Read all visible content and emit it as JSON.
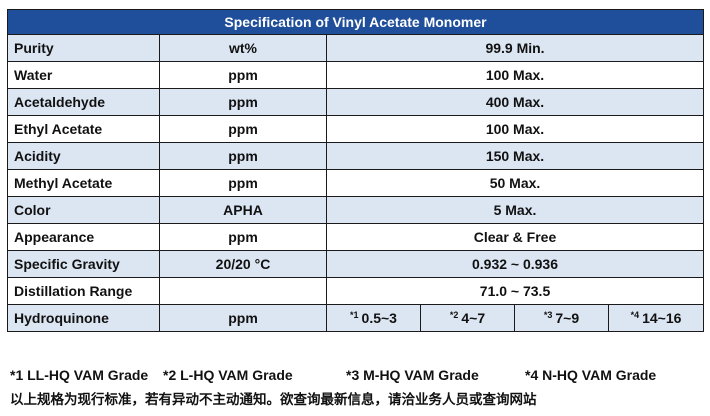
{
  "table": {
    "title": "Specification of Vinyl Acetate Monomer",
    "rows": [
      {
        "name": "Purity",
        "unit": "wt%",
        "value": "99.9 Min."
      },
      {
        "name": "Water",
        "unit": "ppm",
        "value": "100 Max."
      },
      {
        "name": "Acetaldehyde",
        "unit": "ppm",
        "value": "400 Max."
      },
      {
        "name": "Ethyl Acetate",
        "unit": "ppm",
        "value": "100 Max."
      },
      {
        "name": "Acidity",
        "unit": "ppm",
        "value": "150 Max."
      },
      {
        "name": "Methyl Acetate",
        "unit": "ppm",
        "value": "50 Max."
      },
      {
        "name": "Color",
        "unit": "APHA",
        "value": "5 Max."
      },
      {
        "name": "Appearance",
        "unit": "ppm",
        "value": "Clear & Free"
      },
      {
        "name": "Specific Gravity",
        "unit": "20/20 °C",
        "value": "0.932 ~ 0.936"
      },
      {
        "name": "Distillation Range",
        "unit": "",
        "value": "71.0 ~ 73.5"
      }
    ],
    "hydroquinone": {
      "name": "Hydroquinone",
      "unit": "ppm",
      "grades": [
        {
          "mark": "*1",
          "value": "0.5~3"
        },
        {
          "mark": "*2",
          "value": "4~7"
        },
        {
          "mark": "*3",
          "value": "7~9"
        },
        {
          "mark": "*4",
          "value": "14~16"
        }
      ]
    }
  },
  "footnotes": {
    "grades": [
      "*1 LL-HQ VAM Grade",
      "*2 L-HQ VAM Grade",
      "*3 M-HQ VAM Grade",
      "*4 N-HQ VAM Grade"
    ],
    "note": "以上规格为现行标准，若有异动不主动通知。欲查询最新信息，请洽业务人员或查询网站"
  }
}
